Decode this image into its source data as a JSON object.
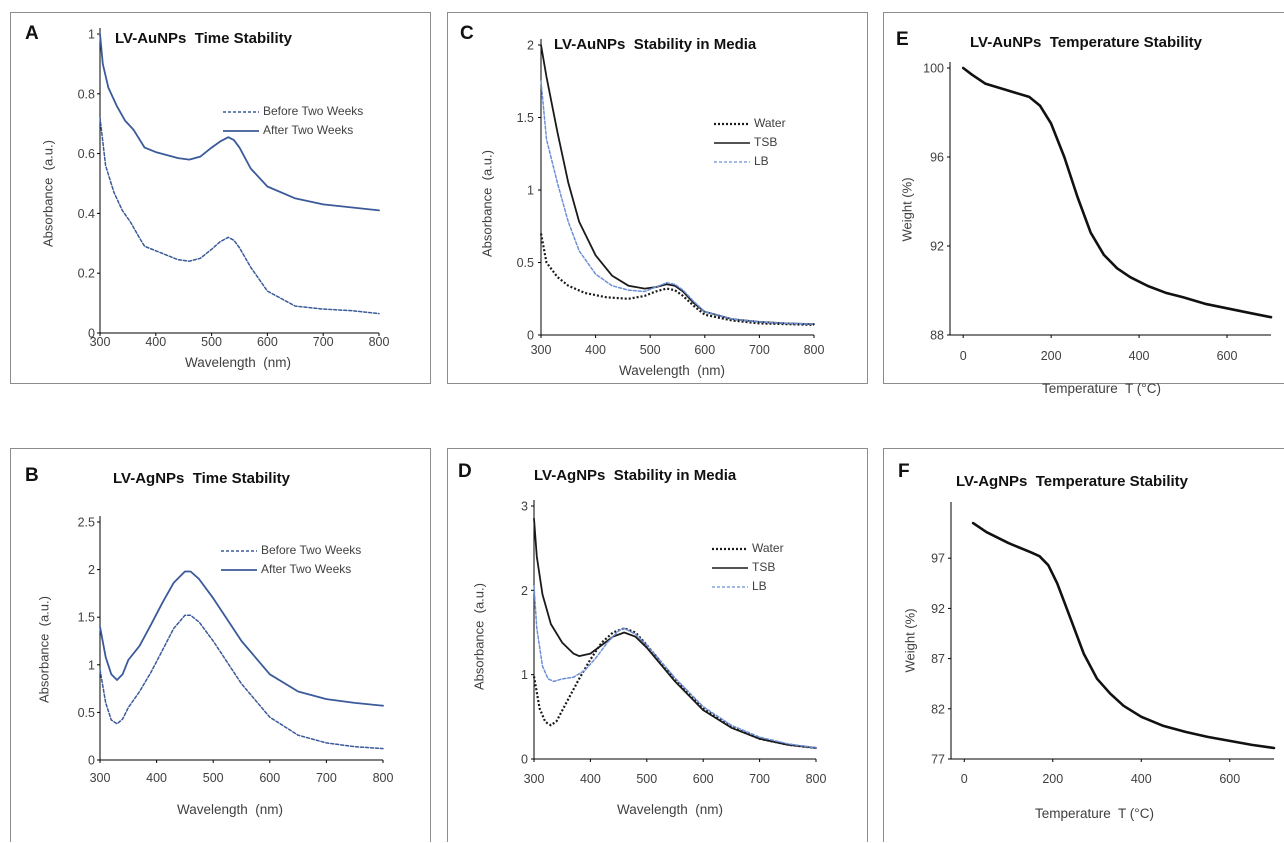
{
  "colors": {
    "blue": "#3b5a9a",
    "black": "#1a1a1a",
    "lightblue": "#6d8fd6"
  },
  "chart_data": [
    {
      "id": "A",
      "panel_label": "A",
      "type": "line",
      "title": "LV-AuNPs  Time Stability",
      "xlabel": "Wavelength  (nm)",
      "ylabel": "Absorbance  (a.u.)",
      "xlim": [
        300,
        800
      ],
      "ylim": [
        0,
        1
      ],
      "x_ticks": [
        300,
        400,
        500,
        600,
        700,
        800
      ],
      "y_ticks": [
        0,
        0.2,
        0.4,
        0.6,
        0.8,
        1
      ],
      "y_tick_labels": [
        "0",
        "0.2",
        "0.4",
        "0.6",
        "0.8",
        "1"
      ],
      "grid": false,
      "legend_position": "top-right",
      "series": [
        {
          "name": "Before Two Weeks",
          "style": "dashed",
          "color": "#3b5a9a",
          "x": [
            300,
            310,
            325,
            340,
            355,
            370,
            380,
            400,
            420,
            440,
            460,
            480,
            500,
            515,
            530,
            540,
            550,
            570,
            600,
            650,
            700,
            750,
            800
          ],
          "y": [
            0.72,
            0.56,
            0.47,
            0.41,
            0.37,
            0.32,
            0.29,
            0.275,
            0.26,
            0.245,
            0.24,
            0.25,
            0.28,
            0.305,
            0.32,
            0.31,
            0.285,
            0.22,
            0.14,
            0.09,
            0.08,
            0.075,
            0.065
          ]
        },
        {
          "name": "After Two Weeks",
          "style": "solid",
          "color": "#3b5a9a",
          "x": [
            300,
            305,
            315,
            330,
            345,
            360,
            380,
            400,
            420,
            440,
            460,
            480,
            500,
            515,
            530,
            540,
            550,
            570,
            600,
            650,
            700,
            750,
            800
          ],
          "y": [
            1.0,
            0.9,
            0.82,
            0.76,
            0.71,
            0.68,
            0.62,
            0.605,
            0.595,
            0.585,
            0.58,
            0.59,
            0.62,
            0.64,
            0.655,
            0.645,
            0.62,
            0.55,
            0.49,
            0.45,
            0.43,
            0.42,
            0.41
          ]
        }
      ]
    },
    {
      "id": "B",
      "panel_label": "B",
      "type": "line",
      "title": "LV-AgNPs  Time Stability",
      "xlabel": "Wavelength  (nm)",
      "ylabel": "Absorbance  (a.u.)",
      "xlim": [
        300,
        800
      ],
      "ylim": [
        0,
        2.5
      ],
      "x_ticks": [
        300,
        400,
        500,
        600,
        700,
        800
      ],
      "y_ticks": [
        0,
        0.5,
        1,
        1.5,
        2,
        2.5
      ],
      "y_tick_labels": [
        "0",
        "0.5",
        "1",
        "1.5",
        "2",
        "2.5"
      ],
      "grid": false,
      "legend_position": "top-right",
      "series": [
        {
          "name": "Before Two Weeks",
          "style": "dashed",
          "color": "#3b5a9a",
          "x": [
            300,
            310,
            320,
            330,
            340,
            350,
            370,
            390,
            410,
            430,
            450,
            460,
            475,
            500,
            550,
            600,
            650,
            700,
            750,
            800
          ],
          "y": [
            0.95,
            0.6,
            0.42,
            0.38,
            0.43,
            0.55,
            0.72,
            0.92,
            1.15,
            1.38,
            1.52,
            1.52,
            1.45,
            1.25,
            0.8,
            0.45,
            0.26,
            0.18,
            0.14,
            0.12
          ]
        },
        {
          "name": "After Two Weeks",
          "style": "solid",
          "color": "#3b5a9a",
          "x": [
            300,
            310,
            320,
            330,
            340,
            350,
            370,
            390,
            410,
            430,
            450,
            460,
            475,
            500,
            550,
            600,
            650,
            700,
            750,
            800
          ],
          "y": [
            1.4,
            1.08,
            0.9,
            0.84,
            0.9,
            1.05,
            1.2,
            1.42,
            1.65,
            1.86,
            1.98,
            1.98,
            1.9,
            1.7,
            1.25,
            0.9,
            0.72,
            0.64,
            0.6,
            0.57
          ]
        }
      ]
    },
    {
      "id": "C",
      "panel_label": "C",
      "type": "line",
      "title": "LV-AuNPs  Stability in Media",
      "xlabel": "Wavelength  (nm)",
      "ylabel": "Absorbance  (a.u.)",
      "xlim": [
        300,
        800
      ],
      "ylim": [
        0,
        2
      ],
      "x_ticks": [
        300,
        400,
        500,
        600,
        700,
        800
      ],
      "y_ticks": [
        0,
        0.5,
        1,
        1.5,
        2
      ],
      "y_tick_labels": [
        "0",
        "0.5",
        "1",
        "1.5",
        "2"
      ],
      "grid": false,
      "legend_position": "top-right",
      "series": [
        {
          "name": "Water",
          "style": "dotted",
          "color": "#1a1a1a",
          "x": [
            300,
            310,
            330,
            350,
            380,
            420,
            460,
            490,
            510,
            530,
            545,
            560,
            580,
            600,
            650,
            700,
            750,
            800
          ],
          "y": [
            0.7,
            0.5,
            0.4,
            0.34,
            0.29,
            0.26,
            0.25,
            0.27,
            0.3,
            0.32,
            0.31,
            0.27,
            0.2,
            0.14,
            0.1,
            0.08,
            0.075,
            0.07
          ]
        },
        {
          "name": "TSB",
          "style": "solid",
          "color": "#1a1a1a",
          "x": [
            300,
            310,
            330,
            350,
            370,
            400,
            430,
            460,
            490,
            510,
            530,
            545,
            560,
            580,
            600,
            650,
            700,
            750,
            800
          ],
          "y": [
            2.0,
            1.78,
            1.4,
            1.05,
            0.78,
            0.55,
            0.41,
            0.34,
            0.32,
            0.33,
            0.35,
            0.34,
            0.3,
            0.22,
            0.16,
            0.11,
            0.09,
            0.08,
            0.075
          ]
        },
        {
          "name": "LB",
          "style": "dashed",
          "color": "#6d8fd6",
          "x": [
            300,
            310,
            330,
            350,
            370,
            400,
            430,
            460,
            490,
            510,
            530,
            545,
            560,
            580,
            600,
            650,
            700,
            750,
            800
          ],
          "y": [
            1.75,
            1.35,
            1.05,
            0.78,
            0.58,
            0.42,
            0.34,
            0.31,
            0.3,
            0.33,
            0.36,
            0.35,
            0.31,
            0.23,
            0.16,
            0.11,
            0.09,
            0.08,
            0.075
          ]
        }
      ]
    },
    {
      "id": "D",
      "panel_label": "D",
      "type": "line",
      "title": "LV-AgNPs  Stability in Media",
      "xlabel": "Wavelength  (nm)",
      "ylabel": "Absorbance  (a.u.)",
      "xlim": [
        300,
        800
      ],
      "ylim": [
        0,
        3
      ],
      "x_ticks": [
        300,
        400,
        500,
        600,
        700,
        800
      ],
      "y_ticks": [
        0,
        1,
        2,
        3
      ],
      "y_tick_labels": [
        "0",
        "1",
        "2",
        "3"
      ],
      "grid": false,
      "legend_position": "top-right",
      "series": [
        {
          "name": "Water",
          "style": "dotted",
          "color": "#1a1a1a",
          "x": [
            300,
            310,
            320,
            330,
            340,
            360,
            380,
            400,
            420,
            440,
            460,
            480,
            500,
            550,
            600,
            650,
            700,
            750,
            800
          ],
          "y": [
            0.98,
            0.6,
            0.44,
            0.4,
            0.45,
            0.7,
            0.95,
            1.18,
            1.38,
            1.5,
            1.55,
            1.5,
            1.35,
            0.95,
            0.6,
            0.38,
            0.24,
            0.17,
            0.13
          ]
        },
        {
          "name": "TSB",
          "style": "solid",
          "color": "#1a1a1a",
          "x": [
            300,
            305,
            315,
            330,
            350,
            370,
            380,
            400,
            420,
            440,
            460,
            480,
            500,
            550,
            600,
            650,
            700,
            750,
            800
          ],
          "y": [
            2.85,
            2.4,
            1.95,
            1.6,
            1.38,
            1.25,
            1.22,
            1.25,
            1.35,
            1.45,
            1.5,
            1.45,
            1.32,
            0.92,
            0.58,
            0.37,
            0.24,
            0.17,
            0.13
          ]
        },
        {
          "name": "LB",
          "style": "dashed",
          "color": "#6d8fd6",
          "x": [
            300,
            305,
            315,
            325,
            335,
            350,
            370,
            390,
            410,
            430,
            450,
            460,
            480,
            500,
            550,
            600,
            650,
            700,
            750,
            800
          ],
          "y": [
            2.05,
            1.55,
            1.1,
            0.95,
            0.92,
            0.95,
            0.97,
            1.05,
            1.2,
            1.38,
            1.52,
            1.55,
            1.48,
            1.35,
            0.96,
            0.62,
            0.4,
            0.26,
            0.18,
            0.13
          ]
        }
      ]
    },
    {
      "id": "E",
      "panel_label": "E",
      "type": "line",
      "title": "LV-AuNPs  Temperature Stability",
      "xlabel": "Temperature  T (°C)",
      "ylabel": "Weight (%)",
      "xlim": [
        -30,
        700
      ],
      "ylim": [
        88,
        100
      ],
      "x_ticks": [
        0,
        200,
        400,
        600
      ],
      "y_ticks": [
        88,
        92,
        96,
        100
      ],
      "y_tick_labels": [
        "88",
        "92",
        "96",
        "100"
      ],
      "grid": false,
      "series": [
        {
          "style": "solid",
          "color": "#111111",
          "x": [
            0,
            20,
            50,
            100,
            150,
            175,
            200,
            230,
            260,
            290,
            320,
            350,
            380,
            420,
            460,
            500,
            550,
            600,
            650,
            700
          ],
          "y": [
            100,
            99.7,
            99.3,
            99.0,
            98.7,
            98.3,
            97.5,
            96.0,
            94.2,
            92.6,
            91.6,
            91.0,
            90.6,
            90.2,
            89.9,
            89.7,
            89.4,
            89.2,
            89.0,
            88.8
          ]
        }
      ]
    },
    {
      "id": "F",
      "panel_label": "F",
      "type": "line",
      "title": "LV-AgNPs  Temperature Stability",
      "xlabel": "Temperature  T (°C)",
      "ylabel": "Weight (%)",
      "xlim": [
        -30,
        700
      ],
      "ylim": [
        77,
        102
      ],
      "x_ticks": [
        0,
        200,
        400,
        600
      ],
      "y_ticks": [
        77,
        82,
        87,
        92,
        97
      ],
      "y_tick_labels": [
        "77",
        "82",
        "87",
        "92",
        "97"
      ],
      "grid": false,
      "series": [
        {
          "style": "solid",
          "color": "#111111",
          "x": [
            20,
            50,
            100,
            150,
            170,
            190,
            210,
            240,
            270,
            300,
            330,
            360,
            400,
            450,
            500,
            550,
            600,
            650,
            700
          ],
          "y": [
            100.5,
            99.6,
            98.5,
            97.6,
            97.2,
            96.3,
            94.5,
            91.0,
            87.5,
            85.0,
            83.5,
            82.3,
            81.2,
            80.3,
            79.7,
            79.2,
            78.8,
            78.4,
            78.1
          ]
        }
      ]
    }
  ]
}
